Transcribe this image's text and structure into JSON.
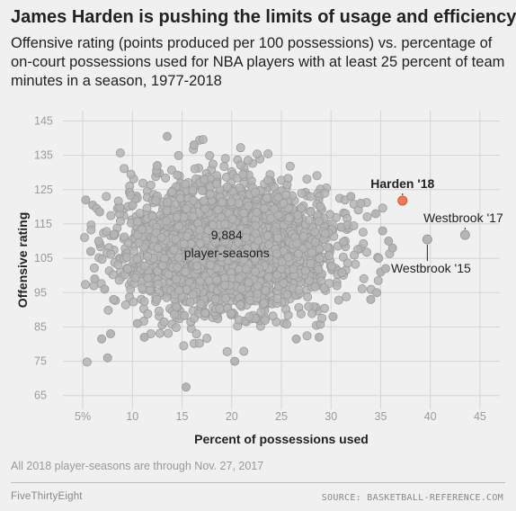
{
  "header": {
    "title": "James Harden is pushing the limits of usage and efficiency",
    "subtitle": "Offensive rating (points produced per 100 possessions) vs. percentage of on-court possessions used for NBA players with at least 25 percent of team minutes in a season, 1977-2018"
  },
  "footer": {
    "note": "All 2018 player-seasons are through Nov. 27, 2017",
    "brand": "FiveThirtyEight",
    "source": "SOURCE: BASKETBALL-REFERENCE.COM"
  },
  "colors": {
    "cloud": "#b5b5b5",
    "cloud_stroke": "#9a9a9a",
    "highlight": "#f07a52",
    "highlight_stroke": "#c85a35",
    "grid": "#d4d4d4"
  },
  "chart_data": {
    "type": "scatter",
    "xlabel": "Percent of possessions used",
    "ylabel": "Offensive rating",
    "xlim": [
      3,
      47
    ],
    "ylim": [
      61,
      148
    ],
    "x_ticks": [
      5,
      10,
      15,
      20,
      25,
      30,
      35,
      40,
      45
    ],
    "x_tick_labels": [
      "5%",
      "10",
      "15",
      "20",
      "25",
      "30",
      "35",
      "40",
      "45"
    ],
    "y_ticks": [
      65,
      75,
      85,
      95,
      105,
      115,
      125,
      135,
      145
    ],
    "y_tick_labels": [
      "65",
      "75",
      "85",
      "95",
      "105",
      "115",
      "125",
      "135",
      "145"
    ],
    "grid": true,
    "cloud": {
      "label_line1": "9,884",
      "label_line2": "player-seasons",
      "count": 9884,
      "center_x": 19.5,
      "center_y": 108,
      "spread_x": 5.2,
      "spread_y": 9.5
    },
    "series": [
      {
        "name": "Harden '18",
        "x": 37.2,
        "y": 121.8,
        "highlight": true
      },
      {
        "name": "Westbrook '17",
        "x": 43.5,
        "y": 111.8
      },
      {
        "name": "Westbrook '15",
        "x": 39.7,
        "y": 110.5
      }
    ],
    "outliers": [
      [
        5.3,
        122
      ],
      [
        6,
        120.5
      ],
      [
        6.4,
        119.5
      ],
      [
        6.7,
        118.5
      ],
      [
        5.8,
        107
      ],
      [
        6.2,
        99
      ],
      [
        6.9,
        81.5
      ],
      [
        7.5,
        76
      ],
      [
        7.8,
        83
      ],
      [
        8.1,
        93
      ],
      [
        7.2,
        96
      ],
      [
        6.6,
        110
      ],
      [
        15.4,
        67.5
      ],
      [
        20.3,
        75
      ],
      [
        13.5,
        140.5
      ],
      [
        16.2,
        138
      ],
      [
        12.5,
        132
      ],
      [
        10.5,
        86
      ],
      [
        11.2,
        82
      ],
      [
        26.5,
        81.5
      ],
      [
        28.8,
        82
      ],
      [
        30.2,
        88
      ],
      [
        35,
        101
      ],
      [
        34.6,
        95
      ],
      [
        34,
        93
      ],
      [
        34.8,
        105
      ],
      [
        35.2,
        113
      ],
      [
        34.5,
        118
      ],
      [
        33,
        121
      ],
      [
        32,
        123
      ],
      [
        35.8,
        110
      ],
      [
        36.2,
        108
      ],
      [
        35.5,
        102
      ]
    ]
  }
}
